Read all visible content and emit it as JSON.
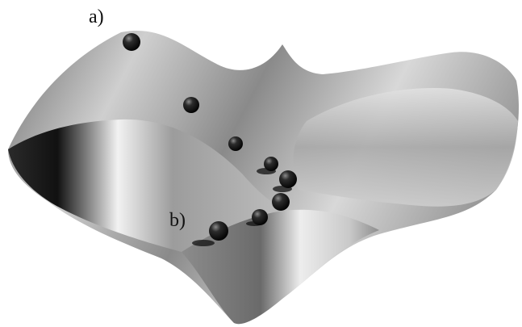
{
  "labels": {
    "a": "a)",
    "b": "b)"
  }
}
